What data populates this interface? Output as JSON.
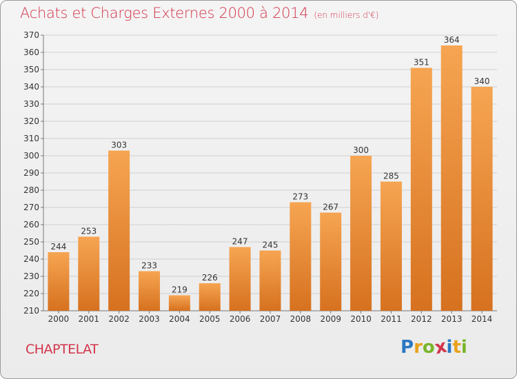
{
  "title": "Achats et Charges Externes 2000 à 2014",
  "unit_label": "(en milliers d'€)",
  "commune": "CHAPTELAT",
  "logo": {
    "text": "Proxiti",
    "letters": [
      {
        "ch": "P",
        "color": "#2a78c4"
      },
      {
        "ch": "r",
        "color": "#e8a11a"
      },
      {
        "ch": "o",
        "color": "#7ab52a"
      },
      {
        "ch": "x",
        "color": "#d2344a"
      },
      {
        "ch": "i",
        "color": "#2a78c4"
      },
      {
        "ch": "t",
        "color": "#e8a11a"
      },
      {
        "ch": "i",
        "color": "#7ab52a"
      }
    ]
  },
  "colors": {
    "title": "#d2344a",
    "bar_top": "#f6a552",
    "bar_bottom": "#d6711f",
    "grid": "#cfcfcf"
  },
  "chart_data": {
    "type": "bar",
    "title": "Achats et Charges Externes 2000 à 2014",
    "subtitle": "(en milliers d'€)",
    "xlabel": "",
    "ylabel": "",
    "categories": [
      "2000",
      "2001",
      "2002",
      "2003",
      "2004",
      "2005",
      "2006",
      "2007",
      "2008",
      "2009",
      "2010",
      "2011",
      "2012",
      "2013",
      "2014"
    ],
    "values": [
      244,
      253,
      303,
      233,
      219,
      226,
      247,
      245,
      273,
      267,
      300,
      285,
      351,
      364,
      340
    ],
    "ylim": [
      210,
      370
    ],
    "yticks": [
      210,
      220,
      230,
      240,
      250,
      260,
      270,
      280,
      290,
      300,
      310,
      320,
      330,
      340,
      350,
      360,
      370
    ],
    "grid": true,
    "legend": "none"
  }
}
